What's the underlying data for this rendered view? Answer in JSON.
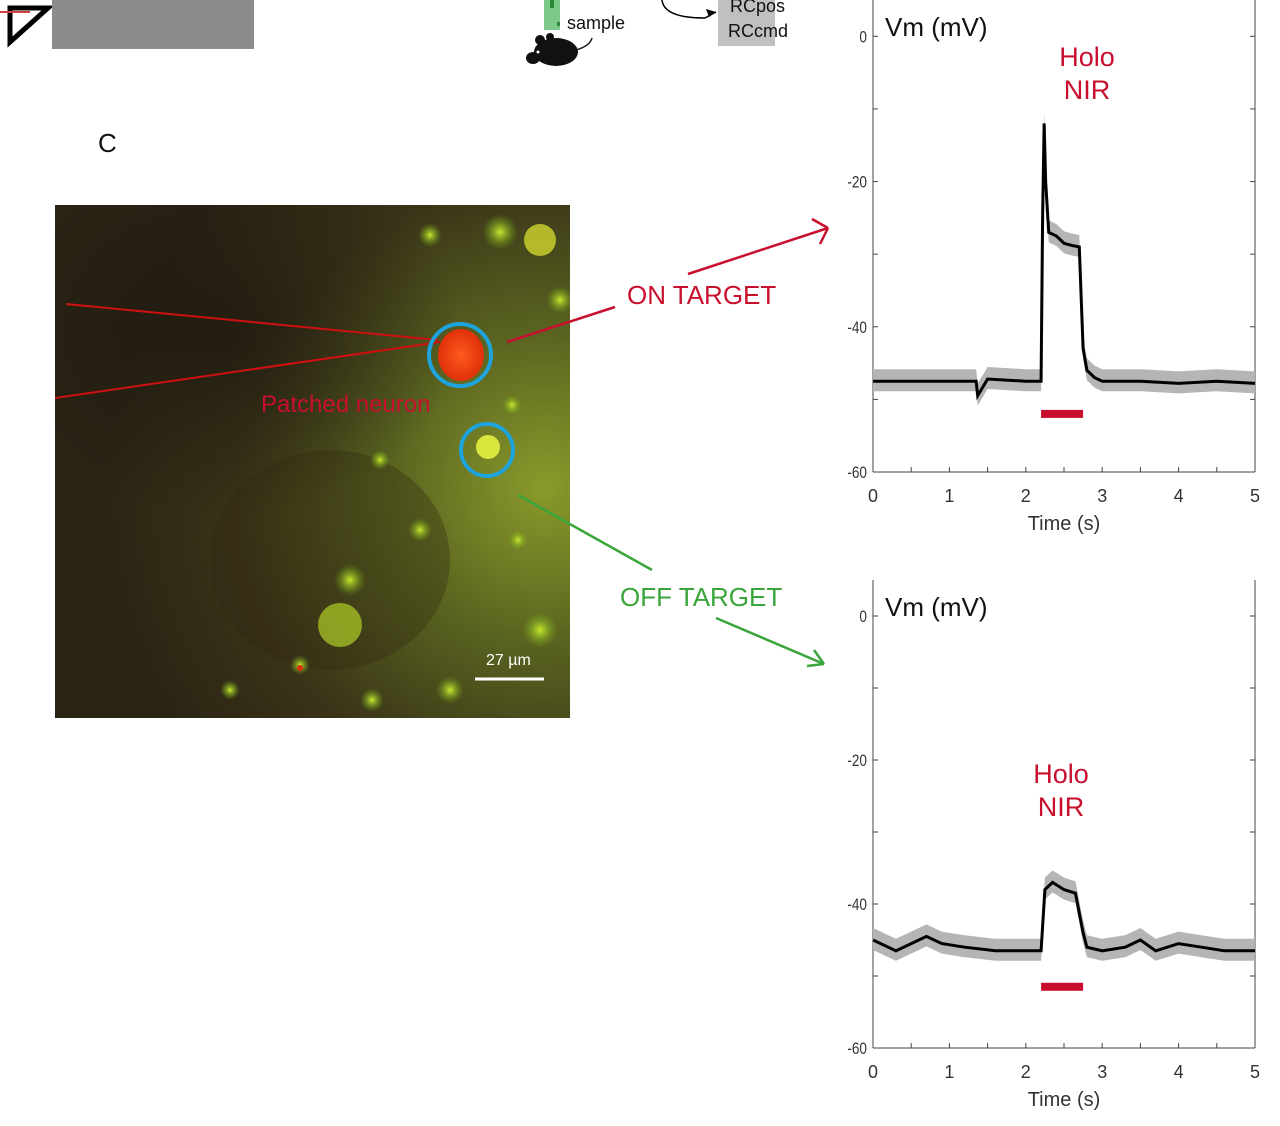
{
  "panel_label": "C",
  "top_strip": {
    "sample_label": "sample",
    "rc_pos_label": "RCpos",
    "rc_cmd_label": "RCcmd"
  },
  "micrograph": {
    "patched_label": "Patched neuron",
    "scale_bar_label": "27 µm",
    "on_target_label": "ON TARGET",
    "off_target_label": "OFF TARGET"
  },
  "colors": {
    "red": "#c8102e",
    "green": "#3aa53a",
    "cyan_ring": "#1ea3dc",
    "trace": "#000000",
    "band": "#b5b5b5"
  },
  "chart_data": [
    {
      "type": "line",
      "name": "on-target trace",
      "ylabel": "Vm (mV)",
      "xlabel": "Time (s)",
      "xlim": [
        0,
        5
      ],
      "ylim": [
        -60,
        5
      ],
      "xticks": [
        "0",
        "1",
        "2",
        "3",
        "4",
        "5"
      ],
      "yticks": [
        "0",
        "-20",
        "-40",
        "-60"
      ],
      "stim_label_lines": [
        "Holo",
        "NIR"
      ],
      "stim_bar": {
        "start": 2.2,
        "end": 2.75,
        "y": -52
      },
      "series": [
        {
          "x": [
            0,
            0.5,
            1.0,
            1.35,
            1.37,
            1.5,
            2.0,
            2.2,
            2.22,
            2.24,
            2.26,
            2.3,
            2.4,
            2.5,
            2.6,
            2.7,
            2.75,
            2.8,
            2.9,
            3.0,
            3.5,
            4.0,
            4.5,
            5.0
          ],
          "y": [
            -47.5,
            -47.5,
            -47.5,
            -47.5,
            -49.5,
            -47.2,
            -47.5,
            -47.5,
            -25,
            -12,
            -20,
            -27,
            -27.5,
            -28.5,
            -28.8,
            -29,
            -43,
            -46,
            -47,
            -47.5,
            -47.5,
            -47.8,
            -47.5,
            -47.8
          ]
        }
      ]
    },
    {
      "type": "line",
      "name": "off-target trace",
      "ylabel": "Vm (mV)",
      "xlabel": "Time (s)",
      "xlim": [
        0,
        5
      ],
      "ylim": [
        -60,
        5
      ],
      "xticks": [
        "0",
        "1",
        "2",
        "3",
        "4",
        "5"
      ],
      "yticks": [
        "0",
        "-20",
        "-40",
        "-60"
      ],
      "stim_label_lines": [
        "Holo",
        "NIR"
      ],
      "stim_bar": {
        "start": 2.2,
        "end": 2.75,
        "y": -51.5
      },
      "series": [
        {
          "x": [
            0,
            0.3,
            0.5,
            0.7,
            0.9,
            1.2,
            1.6,
            2.0,
            2.2,
            2.25,
            2.35,
            2.5,
            2.65,
            2.75,
            2.8,
            3.0,
            3.3,
            3.5,
            3.7,
            4.0,
            4.3,
            4.6,
            5.0
          ],
          "y": [
            -45,
            -46.5,
            -45.5,
            -44.5,
            -45.5,
            -46,
            -46.5,
            -46.5,
            -46.5,
            -38,
            -37,
            -38,
            -38.5,
            -44,
            -46,
            -46.5,
            -46,
            -45,
            -46.5,
            -45.5,
            -46,
            -46.5,
            -46.5
          ]
        }
      ]
    }
  ]
}
